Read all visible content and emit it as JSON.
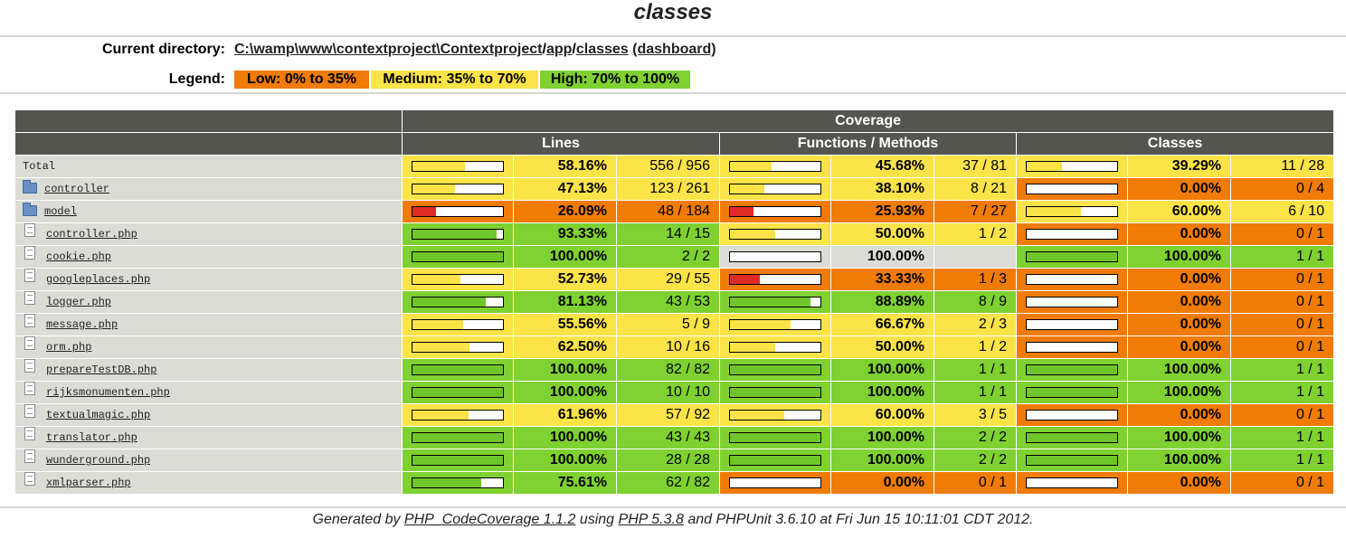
{
  "page_title": "classes",
  "header": {
    "current_directory_label": "Current directory:",
    "path_parts": [
      "C:\\wamp\\www\\contextproject\\Contextproject",
      "/",
      "app",
      "/",
      "classes"
    ],
    "dashboard_link": "(dashboard)",
    "legend_label": "Legend:",
    "legend": {
      "low": "Low: 0% to 35%",
      "medium": "Medium: 35% to 70%",
      "high": "High: 70% to 100%"
    }
  },
  "colors": {
    "low": "#f07b05",
    "medium": "#fbe348",
    "high": "#7ed130",
    "header_bg": "#555550",
    "row_bg": "#dcdcd6"
  },
  "table": {
    "coverage_header": "Coverage",
    "columns": [
      "Lines",
      "Functions / Methods",
      "Classes"
    ],
    "rows": [
      {
        "name": "Total",
        "type": "total",
        "lines": {
          "pct": "58.16%",
          "frac": "556 / 956",
          "level": "med",
          "v": 58.16
        },
        "funcs": {
          "pct": "45.68%",
          "frac": "37 / 81",
          "level": "med",
          "v": 45.68
        },
        "classes": {
          "pct": "39.29%",
          "frac": "11 / 28",
          "level": "med",
          "v": 39.29
        }
      },
      {
        "name": "controller",
        "type": "folder",
        "lines": {
          "pct": "47.13%",
          "frac": "123 / 261",
          "level": "med",
          "v": 47.13
        },
        "funcs": {
          "pct": "38.10%",
          "frac": "8 / 21",
          "level": "med",
          "v": 38.1
        },
        "classes": {
          "pct": "0.00%",
          "frac": "0 / 4",
          "level": "low",
          "v": 0
        }
      },
      {
        "name": "model",
        "type": "folder",
        "lines": {
          "pct": "26.09%",
          "frac": "48 / 184",
          "level": "low",
          "v": 26.09
        },
        "funcs": {
          "pct": "25.93%",
          "frac": "7 / 27",
          "level": "low",
          "v": 25.93
        },
        "classes": {
          "pct": "60.00%",
          "frac": "6 / 10",
          "level": "med",
          "v": 60
        }
      },
      {
        "name": "controller.php",
        "type": "file",
        "lines": {
          "pct": "93.33%",
          "frac": "14 / 15",
          "level": "high",
          "v": 93.33
        },
        "funcs": {
          "pct": "50.00%",
          "frac": "1 / 2",
          "level": "med",
          "v": 50
        },
        "classes": {
          "pct": "0.00%",
          "frac": "0 / 1",
          "level": "low",
          "v": 0
        }
      },
      {
        "name": "cookie.php",
        "type": "file",
        "lines": {
          "pct": "100.00%",
          "frac": "2 / 2",
          "level": "high",
          "v": 100
        },
        "funcs": {
          "pct": "100.00%",
          "frac": "",
          "level": "na",
          "v": 0
        },
        "classes": {
          "pct": "100.00%",
          "frac": "1 / 1",
          "level": "high",
          "v": 100
        }
      },
      {
        "name": "googleplaces.php",
        "type": "file",
        "lines": {
          "pct": "52.73%",
          "frac": "29 / 55",
          "level": "med",
          "v": 52.73
        },
        "funcs": {
          "pct": "33.33%",
          "frac": "1 / 3",
          "level": "low",
          "v": 33.33
        },
        "classes": {
          "pct": "0.00%",
          "frac": "0 / 1",
          "level": "low",
          "v": 0
        }
      },
      {
        "name": "logger.php",
        "type": "file",
        "lines": {
          "pct": "81.13%",
          "frac": "43 / 53",
          "level": "high",
          "v": 81.13
        },
        "funcs": {
          "pct": "88.89%",
          "frac": "8 / 9",
          "level": "high",
          "v": 88.89
        },
        "classes": {
          "pct": "0.00%",
          "frac": "0 / 1",
          "level": "low",
          "v": 0
        }
      },
      {
        "name": "message.php",
        "type": "file",
        "lines": {
          "pct": "55.56%",
          "frac": "5 / 9",
          "level": "med",
          "v": 55.56
        },
        "funcs": {
          "pct": "66.67%",
          "frac": "2 / 3",
          "level": "med",
          "v": 66.67
        },
        "classes": {
          "pct": "0.00%",
          "frac": "0 / 1",
          "level": "low",
          "v": 0
        }
      },
      {
        "name": "orm.php",
        "type": "file",
        "lines": {
          "pct": "62.50%",
          "frac": "10 / 16",
          "level": "med",
          "v": 62.5
        },
        "funcs": {
          "pct": "50.00%",
          "frac": "1 / 2",
          "level": "med",
          "v": 50
        },
        "classes": {
          "pct": "0.00%",
          "frac": "0 / 1",
          "level": "low",
          "v": 0
        }
      },
      {
        "name": "prepareTestDB.php",
        "type": "file",
        "lines": {
          "pct": "100.00%",
          "frac": "82 / 82",
          "level": "high",
          "v": 100
        },
        "funcs": {
          "pct": "100.00%",
          "frac": "1 / 1",
          "level": "high",
          "v": 100
        },
        "classes": {
          "pct": "100.00%",
          "frac": "1 / 1",
          "level": "high",
          "v": 100
        }
      },
      {
        "name": "rijksmonumenten.php",
        "type": "file",
        "lines": {
          "pct": "100.00%",
          "frac": "10 / 10",
          "level": "high",
          "v": 100
        },
        "funcs": {
          "pct": "100.00%",
          "frac": "1 / 1",
          "level": "high",
          "v": 100
        },
        "classes": {
          "pct": "100.00%",
          "frac": "1 / 1",
          "level": "high",
          "v": 100
        }
      },
      {
        "name": "textualmagic.php",
        "type": "file",
        "lines": {
          "pct": "61.96%",
          "frac": "57 / 92",
          "level": "med",
          "v": 61.96
        },
        "funcs": {
          "pct": "60.00%",
          "frac": "3 / 5",
          "level": "med",
          "v": 60
        },
        "classes": {
          "pct": "0.00%",
          "frac": "0 / 1",
          "level": "low",
          "v": 0
        }
      },
      {
        "name": "translator.php",
        "type": "file",
        "lines": {
          "pct": "100.00%",
          "frac": "43 / 43",
          "level": "high",
          "v": 100
        },
        "funcs": {
          "pct": "100.00%",
          "frac": "2 / 2",
          "level": "high",
          "v": 100
        },
        "classes": {
          "pct": "100.00%",
          "frac": "1 / 1",
          "level": "high",
          "v": 100
        }
      },
      {
        "name": "wunderground.php",
        "type": "file",
        "lines": {
          "pct": "100.00%",
          "frac": "28 / 28",
          "level": "high",
          "v": 100
        },
        "funcs": {
          "pct": "100.00%",
          "frac": "2 / 2",
          "level": "high",
          "v": 100
        },
        "classes": {
          "pct": "100.00%",
          "frac": "1 / 1",
          "level": "high",
          "v": 100
        }
      },
      {
        "name": "xmlparser.php",
        "type": "file",
        "lines": {
          "pct": "75.61%",
          "frac": "62 / 82",
          "level": "high",
          "v": 75.61
        },
        "funcs": {
          "pct": "0.00%",
          "frac": "0 / 1",
          "level": "low",
          "v": 0
        },
        "classes": {
          "pct": "0.00%",
          "frac": "0 / 1",
          "level": "low",
          "v": 0
        }
      }
    ]
  },
  "footer": {
    "generated_by": "Generated by",
    "codecoverage_link": "PHP_CodeCoverage 1.1.2",
    "using": "using",
    "php_link": "PHP 5.3.8",
    "rest": "and PHPUnit 3.6.10 at Fri Jun 15 10:11:01 CDT 2012."
  }
}
